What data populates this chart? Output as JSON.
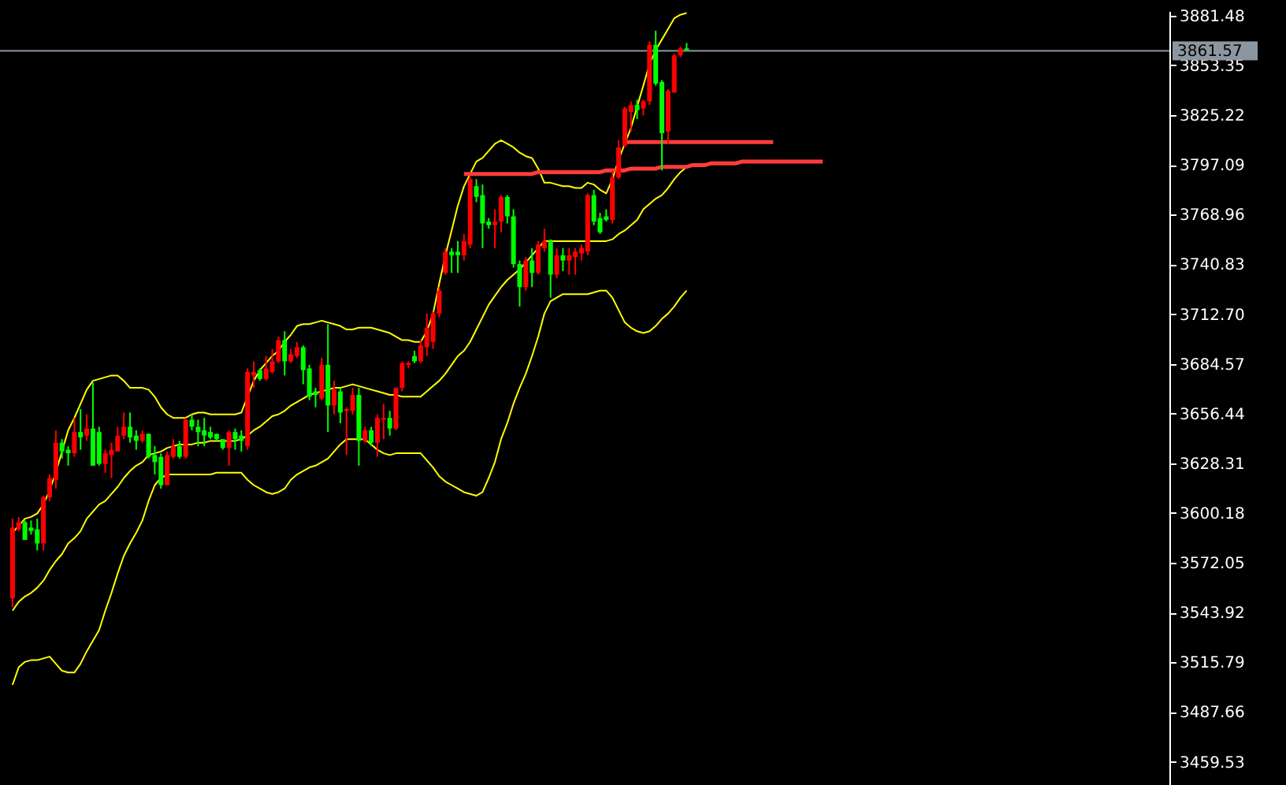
{
  "chart_data": {
    "type": "candlestick",
    "categories": [
      null,
      null,
      null,
      null,
      null,
      null,
      null,
      null,
      null,
      null,
      null,
      null,
      null,
      null,
      null,
      null,
      null,
      null,
      null,
      null,
      null,
      null,
      null,
      null,
      null,
      null,
      null,
      null,
      null,
      null,
      null,
      null,
      null,
      null,
      null,
      null,
      null,
      null,
      null,
      null,
      null,
      null,
      null,
      null,
      null,
      null,
      null,
      null,
      null,
      null,
      null,
      null,
      null,
      null,
      null,
      null,
      null,
      null,
      null,
      null,
      null,
      null,
      null,
      null,
      null,
      null,
      null,
      null,
      null,
      null,
      null,
      null,
      null,
      null,
      null,
      null,
      null,
      null,
      null,
      null,
      null,
      null,
      null,
      null,
      null,
      null,
      null,
      null,
      null,
      null,
      null,
      null,
      null,
      null,
      null,
      null,
      null,
      null,
      null,
      null,
      null,
      null,
      null,
      null,
      null,
      null,
      null,
      null,
      null,
      null,
      null,
      null,
      null,
      null,
      null,
      null,
      null,
      null,
      null,
      null,
      null,
      null,
      null,
      null,
      null,
      null,
      null,
      null,
      null,
      null,
      null,
      null
    ],
    "ylim": [
      3446.4,
      3884.1
    ],
    "yticks": [
      3459.53,
      3487.66,
      3515.79,
      3543.92,
      3572.05,
      3600.18,
      3628.31,
      3656.44,
      3684.57,
      {
        "value": 3712.7,
        "label": "3712.70"
      },
      3740.83,
      3768.96,
      3797.09,
      3825.22,
      3853.35,
      3881.48
    ],
    "tick_labels": "y",
    "ohlc": [
      [
        3552,
        3597,
        3547,
        3592
      ],
      [
        3591,
        3598,
        3590,
        3595
      ],
      [
        3595,
        3596,
        3585,
        3585
      ],
      [
        3592,
        3596,
        3588,
        3590
      ],
      [
        3591,
        3597,
        3579,
        3583
      ],
      [
        3583,
        3610,
        3579,
        3609
      ],
      [
        3609,
        3622,
        3607,
        3620
      ],
      [
        3619,
        3647,
        3614,
        3640
      ],
      [
        3640,
        3642,
        3631,
        3635
      ],
      [
        3636,
        3638,
        3627,
        3634
      ],
      [
        3634,
        3654,
        3632,
        3646
      ],
      [
        3646,
        3659,
        3636,
        3643
      ],
      [
        3644,
        3656,
        3641,
        3648
      ],
      [
        3648,
        3674,
        3627,
        3627
      ],
      [
        3646,
        3649,
        3627,
        3628
      ],
      [
        3628,
        3636,
        3623,
        3634
      ],
      [
        3633,
        3640,
        3620,
        3636
      ],
      [
        3635,
        3649,
        3635,
        3644
      ],
      [
        3644,
        3657,
        3642,
        3649
      ],
      [
        3649,
        3657,
        3640,
        3643
      ],
      [
        3644,
        3647,
        3636,
        3641
      ],
      [
        3641,
        3647,
        3640,
        3645
      ],
      [
        3645,
        3645,
        3631,
        3632
      ],
      [
        3633,
        3638,
        3622,
        3629
      ],
      [
        3632,
        3634,
        3614,
        3616
      ],
      [
        3616,
        3635,
        3616,
        3633
      ],
      [
        3632,
        3642,
        3631,
        3638
      ],
      [
        3638,
        3641,
        3631,
        3632
      ],
      [
        3632,
        3654,
        3631,
        3653
      ],
      [
        3653,
        3656,
        3647,
        3649
      ],
      [
        3649,
        3653,
        3638,
        3646
      ],
      [
        3647,
        3654,
        3638,
        3644
      ],
      [
        3646,
        3649,
        3642,
        3643
      ],
      [
        3645,
        3645,
        3641,
        3642
      ],
      [
        3642,
        3642,
        3636,
        3637
      ],
      [
        3637,
        3647,
        3627,
        3646
      ],
      [
        3646,
        3648,
        3636,
        3642
      ],
      [
        3644,
        3647,
        3635,
        3641
      ],
      [
        3638,
        3682,
        3636,
        3680
      ],
      [
        3678,
        3686,
        3671,
        3680
      ],
      [
        3681,
        3682,
        3675,
        3676
      ],
      [
        3676,
        3689,
        3675,
        3682
      ],
      [
        3680,
        3693,
        3679,
        3686
      ],
      [
        3686,
        3700,
        3685,
        3698
      ],
      [
        3698,
        3703,
        3678,
        3686
      ],
      [
        3686,
        3693,
        3685,
        3690
      ],
      [
        3689,
        3697,
        3688,
        3694
      ],
      [
        3694,
        3695,
        3673,
        3681
      ],
      [
        3682,
        3684,
        3664,
        3666
      ],
      [
        3669,
        3671,
        3660,
        3667
      ],
      [
        3665,
        3688,
        3664,
        3684
      ],
      [
        3684,
        3707,
        3646,
        3661
      ],
      [
        3661,
        3675,
        3656,
        3670
      ],
      [
        3669,
        3671,
        3651,
        3657
      ],
      [
        3658,
        3660,
        3633,
        3659
      ],
      [
        3658,
        3671,
        3656,
        3667
      ],
      [
        3667,
        3671,
        3627,
        3641
      ],
      [
        3641,
        3649,
        3640,
        3647
      ],
      [
        3647,
        3649,
        3638,
        3640
      ],
      [
        3640,
        3656,
        3632,
        3654
      ],
      [
        3653,
        3662,
        3642,
        3654
      ],
      [
        3654,
        3658,
        3644,
        3648
      ],
      [
        3648,
        3671,
        3647,
        3671
      ],
      [
        3671,
        3686,
        3669,
        3685
      ],
      [
        3684,
        3686,
        3682,
        3685
      ],
      [
        3689,
        3692,
        3685,
        3686
      ],
      [
        3686,
        3698,
        3685,
        3695
      ],
      [
        3694,
        3713,
        3689,
        3705
      ],
      [
        3697,
        3714,
        3693,
        3713
      ],
      [
        3713,
        3728,
        3711,
        3726
      ],
      [
        3736,
        3750,
        3735,
        3748
      ],
      [
        3748,
        3750,
        3736,
        3746
      ],
      [
        3748,
        3754,
        3736,
        3746
      ],
      [
        3746,
        3758,
        3743,
        3754
      ],
      [
        3752,
        3790,
        3750,
        3789
      ],
      [
        3785,
        3789,
        3776,
        3779
      ],
      [
        3780,
        3786,
        3750,
        3764
      ],
      [
        3765,
        3767,
        3761,
        3763
      ],
      [
        3763,
        3772,
        3750,
        3765
      ],
      [
        3765,
        3780,
        3759,
        3779
      ],
      [
        3779,
        3780,
        3764,
        3768
      ],
      [
        3768,
        3772,
        3739,
        3741
      ],
      [
        3741,
        3743,
        3717,
        3728
      ],
      [
        3728,
        3745,
        3726,
        3743
      ],
      [
        3743,
        3750,
        3728,
        3736
      ],
      [
        3736,
        3754,
        3735,
        3752
      ],
      [
        3750,
        3761,
        3748,
        3754
      ],
      [
        3754,
        3755,
        3722,
        3735
      ],
      [
        3735,
        3750,
        3733,
        3746
      ],
      [
        3746,
        3750,
        3737,
        3743
      ],
      [
        3743,
        3750,
        3735,
        3746
      ],
      [
        3745,
        3750,
        3735,
        3748
      ],
      [
        3747,
        3752,
        3743,
        3750
      ],
      [
        3748,
        3781,
        3746,
        3780
      ],
      [
        3780,
        3783,
        3763,
        3765
      ],
      [
        3767,
        3770,
        3758,
        3759
      ],
      [
        3768,
        3772,
        3765,
        3766
      ],
      [
        3766,
        3794,
        3764,
        3790
      ],
      [
        3790,
        3811,
        3789,
        3807
      ],
      [
        3808,
        3830,
        3807,
        3829
      ],
      [
        3827,
        3833,
        3816,
        3831
      ],
      [
        3831,
        3834,
        3823,
        3828
      ],
      [
        3829,
        3834,
        3825,
        3833
      ],
      [
        3833,
        3867,
        3831,
        3865
      ],
      [
        3865,
        3873,
        3842,
        3843
      ],
      [
        3844,
        3845,
        3794,
        3815
      ],
      [
        3816,
        3840,
        3809,
        3839
      ],
      [
        3838,
        3860,
        3838,
        3859
      ],
      [
        3859,
        3864,
        3858,
        3863
      ],
      [
        3863,
        3866,
        3862,
        3862
      ],
      null,
      null,
      null,
      null,
      null,
      null,
      null,
      null,
      null,
      null,
      null,
      null,
      null,
      null,
      null,
      null,
      null,
      null,
      null,
      null,
      null,
      null
    ],
    "colors": [
      "#ff0000",
      "#ff0000",
      "#00ff00",
      "#00ff00",
      "#00ff00",
      "#ff0000",
      "#ff0000",
      "#ff0000",
      "#00ff00",
      "#00ff00",
      "#ff0000",
      "#00ff00",
      "#ff0000",
      "#00ff00",
      "#00ff00",
      "#ff0000",
      "#ff0000",
      "#ff0000",
      "#ff0000",
      "#00ff00",
      "#00ff00",
      "#ff0000",
      "#00ff00",
      "#00ff00",
      "#00ff00",
      "#ff0000",
      "#ff0000",
      "#00ff00",
      "#ff0000",
      "#00ff00",
      "#00ff00",
      "#00ff00",
      "#00ff00",
      "#00ff00",
      "#00ff00",
      "#ff0000",
      "#00ff00",
      "#00ff00",
      "#ff0000",
      "#ff0000",
      "#00ff00",
      "#ff0000",
      "#ff0000",
      "#ff0000",
      "#00ff00",
      "#ff0000",
      "#ff0000",
      "#00ff00",
      "#00ff00",
      "#00ff00",
      "#ff0000",
      "#00ff00",
      "#ff0000",
      "#00ff00",
      "#ff0000",
      "#ff0000",
      "#00ff00",
      "#ff0000",
      "#00ff00",
      "#ff0000",
      "#ff0000",
      "#00ff00",
      "#ff0000",
      "#ff0000",
      "#ff0000",
      "#00ff00",
      "#ff0000",
      "#ff0000",
      "#ff0000",
      "#ff0000",
      "#ff0000",
      "#00ff00",
      "#00ff00",
      "#ff0000",
      "#ff0000",
      "#00ff00",
      "#00ff00",
      "#00ff00",
      "#ff0000",
      "#ff0000",
      "#00ff00",
      "#00ff00",
      "#00ff00",
      "#ff0000",
      "#00ff00",
      "#ff0000",
      "#ff0000",
      "#00ff00",
      "#ff0000",
      "#00ff00",
      "#ff0000",
      "#ff0000",
      "#ff0000",
      "#ff0000",
      "#00ff00",
      "#00ff00",
      "#00ff00",
      "#ff0000",
      "#ff0000",
      "#ff0000",
      "#ff0000",
      "#00ff00",
      "#ff0000",
      "#ff0000",
      "#00ff00",
      "#00ff00",
      "#ff0000",
      "#ff0000",
      "#ff0000",
      "#00ff00",
      null,
      null,
      null,
      null,
      null,
      null,
      null,
      null,
      null,
      null,
      null,
      null,
      null,
      null,
      null,
      null,
      null,
      null,
      null,
      null,
      null,
      null
    ],
    "series": [
      {
        "type": "line",
        "color": "#ffff00",
        "values": [
          3589,
          3593,
          3597,
          3598,
          3600,
          3605,
          3613,
          3623,
          3635,
          3647,
          3654,
          3662,
          3670,
          3675,
          3676,
          3677,
          3678,
          3678,
          3675,
          3671,
          3671,
          3671,
          3670,
          3666,
          3660,
          3656,
          3654,
          3654,
          3654,
          3656,
          3657,
          3657,
          3656,
          3656,
          3656,
          3656,
          3656,
          3657,
          3666,
          3675,
          3681,
          3685,
          3689,
          3692,
          3697,
          3701,
          3706,
          3707,
          3707,
          3708,
          3709,
          3708,
          3707,
          3706,
          3704,
          3704,
          3705,
          3705,
          3705,
          3704,
          3703,
          3702,
          3700,
          3698,
          3698,
          3697,
          3697,
          3703,
          3713,
          3730,
          3746,
          3760,
          3774,
          3785,
          3792,
          3799,
          3801,
          3805,
          3809,
          3811,
          3809,
          3807,
          3804,
          3802,
          3801,
          3795,
          3787,
          3787,
          3786,
          3785,
          3785,
          3784,
          3784,
          3787,
          3786,
          3783,
          3781,
          3789,
          3800,
          3809,
          3818,
          3830,
          3842,
          3854,
          3862,
          3868,
          3874,
          3880,
          3882,
          3883,
          null,
          null,
          null,
          null,
          null,
          null,
          null,
          null,
          null,
          null,
          null,
          null,
          null,
          null,
          null,
          null,
          null,
          null,
          null,
          null,
          null,
          null
        ]
      },
      {
        "type": "line",
        "color": "#ffff00",
        "values": [
          3545,
          3550,
          3553,
          3555,
          3558,
          3562,
          3568,
          3573,
          3577,
          3583,
          3586,
          3590,
          3597,
          3601,
          3605,
          3607,
          3611,
          3615,
          3620,
          3624,
          3627,
          3629,
          3633,
          3634,
          3635,
          3637,
          3638,
          3639,
          3639,
          3639,
          3640,
          3640,
          3641,
          3641,
          3641,
          3641,
          3641,
          3642,
          3644,
          3647,
          3649,
          3652,
          3655,
          3656,
          3658,
          3661,
          3663,
          3665,
          3667,
          3668,
          3669,
          3670,
          3671,
          3671,
          3672,
          3673,
          3672,
          3671,
          3670,
          3669,
          3668,
          3667,
          3667,
          3666,
          3666,
          3666,
          3666,
          3669,
          3672,
          3675,
          3679,
          3684,
          3689,
          3692,
          3697,
          3704,
          3711,
          3718,
          3723,
          3728,
          3732,
          3735,
          3738,
          3742,
          3746,
          3750,
          3754,
          3754,
          3754,
          3754,
          3754,
          3754,
          3754,
          3754,
          3754,
          3754,
          3754,
          3755,
          3758,
          3760,
          3763,
          3766,
          3772,
          3775,
          3778,
          3780,
          3784,
          3789,
          3793,
          3796,
          null,
          null,
          null,
          null,
          null,
          null,
          null,
          null,
          null,
          null,
          null,
          null,
          null,
          null,
          null,
          null,
          null,
          null,
          null,
          null,
          null,
          null
        ]
      },
      {
        "type": "line",
        "color": "#ffff00",
        "values": [
          3503,
          3513,
          3516,
          3517,
          3517,
          3518,
          3519,
          3515,
          3511,
          3510,
          3510,
          3515,
          3522,
          3528,
          3534,
          3545,
          3555,
          3566,
          3576,
          3583,
          3589,
          3596,
          3607,
          3616,
          3620,
          3622,
          3622,
          3622,
          3622,
          3622,
          3622,
          3622,
          3622,
          3623,
          3623,
          3623,
          3623,
          3623,
          3619,
          3616,
          3614,
          3612,
          3611,
          3612,
          3614,
          3619,
          3622,
          3624,
          3626,
          3627,
          3629,
          3631,
          3635,
          3639,
          3642,
          3642,
          3642,
          3642,
          3639,
          3636,
          3634,
          3633,
          3634,
          3634,
          3634,
          3634,
          3634,
          3630,
          3626,
          3621,
          3618,
          3616,
          3614,
          3612,
          3611,
          3610,
          3612,
          3620,
          3629,
          3642,
          3651,
          3662,
          3671,
          3679,
          3689,
          3700,
          3713,
          3720,
          3722,
          3724,
          3724,
          3724,
          3724,
          3724,
          3725,
          3726,
          3726,
          3722,
          3715,
          3708,
          3705,
          3703,
          3702,
          3703,
          3706,
          3710,
          3713,
          3717,
          3722,
          3726,
          null,
          null,
          null,
          null,
          null,
          null,
          null,
          null,
          null,
          null,
          null,
          null,
          null,
          null,
          null,
          null,
          null,
          null,
          null,
          null,
          null,
          null
        ]
      },
      {
        "type": "line",
        "color": "#ff3c3c",
        "values": [
          null,
          null,
          null,
          null,
          null,
          null,
          null,
          null,
          null,
          null,
          null,
          null,
          null,
          null,
          null,
          null,
          null,
          null,
          null,
          null,
          null,
          null,
          null,
          null,
          null,
          null,
          null,
          null,
          null,
          null,
          null,
          null,
          null,
          null,
          null,
          null,
          null,
          null,
          null,
          null,
          null,
          null,
          null,
          null,
          null,
          null,
          null,
          null,
          null,
          null,
          null,
          null,
          null,
          null,
          null,
          null,
          null,
          null,
          null,
          null,
          null,
          null,
          null,
          null,
          null,
          null,
          null,
          null,
          null,
          null,
          null,
          null,
          null,
          3792,
          3792,
          3792,
          3792,
          3792,
          3792,
          3792,
          3792,
          3792,
          3792,
          3792,
          3792,
          3793,
          3793,
          3793,
          3793,
          3793,
          3793,
          3793,
          3793,
          3793,
          3793,
          3793,
          3794,
          3794,
          3794,
          3794,
          3795,
          3795,
          3795,
          3795,
          3795,
          3796,
          3796,
          3796,
          3796,
          3796,
          3797,
          3797,
          3797,
          3798,
          3798,
          3798,
          3798,
          3798,
          3799,
          3799,
          3799,
          3799,
          3799,
          3799,
          3799,
          3799,
          3799,
          3799,
          3799,
          3799,
          3799,
          3799
        ]
      },
      {
        "type": "line",
        "color": "#ff3c3c",
        "values": [
          null,
          null,
          null,
          null,
          null,
          null,
          null,
          null,
          null,
          null,
          null,
          null,
          null,
          null,
          null,
          null,
          null,
          null,
          null,
          null,
          null,
          null,
          null,
          null,
          null,
          null,
          null,
          null,
          null,
          null,
          null,
          null,
          null,
          null,
          null,
          null,
          null,
          null,
          null,
          null,
          null,
          null,
          null,
          null,
          null,
          null,
          null,
          null,
          null,
          null,
          null,
          null,
          null,
          null,
          null,
          null,
          null,
          null,
          null,
          null,
          null,
          null,
          null,
          null,
          null,
          null,
          null,
          null,
          null,
          null,
          null,
          null,
          null,
          null,
          null,
          null,
          null,
          null,
          null,
          null,
          null,
          null,
          null,
          null,
          null,
          null,
          null,
          null,
          null,
          null,
          null,
          null,
          null,
          null,
          null,
          null,
          null,
          null,
          null,
          3810,
          3810,
          3810,
          3810,
          3810,
          3810,
          3810,
          3810,
          3810,
          3810,
          3810,
          3810,
          3810,
          3810,
          3810,
          3810,
          3810,
          3810,
          3810,
          3810,
          3810,
          3810,
          3810,
          3810,
          3810,
          null,
          null,
          null,
          null,
          null,
          null,
          null,
          null
        ]
      }
    ],
    "ref_lines": [
      {
        "axis": "y",
        "value": 3861.57,
        "label": "3861.57",
        "color": "#8c96a0"
      }
    ]
  }
}
